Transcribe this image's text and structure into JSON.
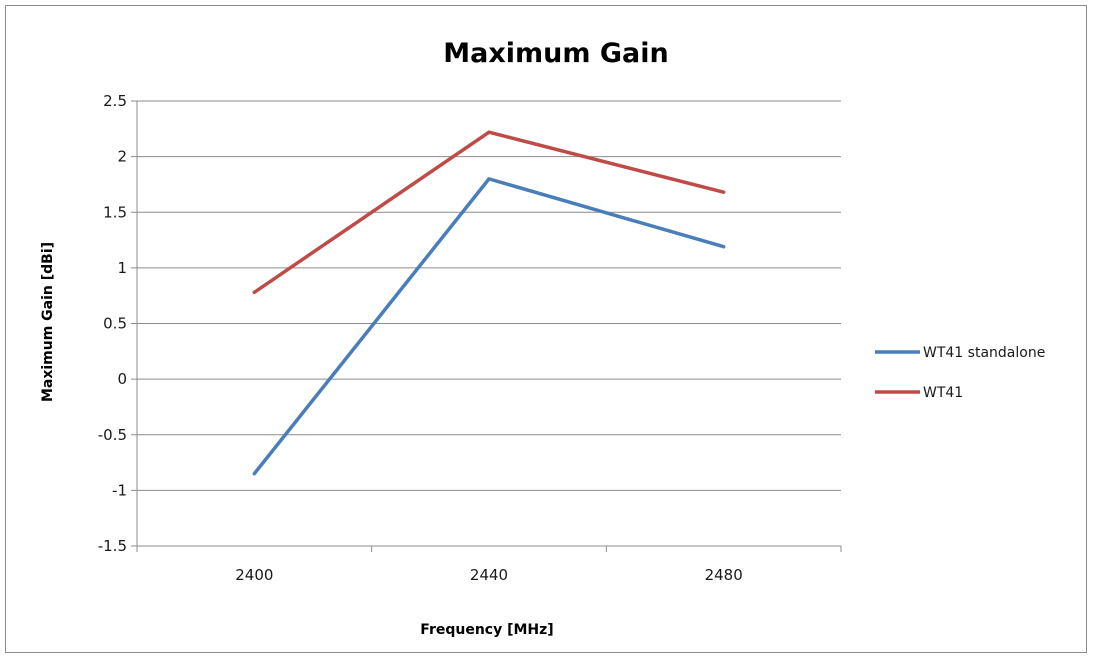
{
  "chart_data": {
    "type": "line",
    "title": "Maximum Gain",
    "xlabel": "Frequency [MHz]",
    "ylabel": "Maximum Gain [dBi]",
    "x": [
      2400,
      2440,
      2480
    ],
    "x_tick_labels": [
      "2400",
      "2440",
      "2480"
    ],
    "xlim": [
      2380,
      2500
    ],
    "ylim": [
      -1.5,
      2.5
    ],
    "y_ticks": [
      2.5,
      2,
      1.5,
      1,
      0.5,
      0,
      -0.5,
      -1,
      -1.5
    ],
    "y_tick_labels": [
      "2.5",
      "2",
      "1.5",
      "1",
      "0.5",
      "0",
      "-0.5",
      "-1",
      "-1.5"
    ],
    "grid": true,
    "legend_position": "right",
    "series": [
      {
        "name": "WT41 standalone",
        "color": "#4a7ebb",
        "values": [
          -0.85,
          1.8,
          1.19
        ]
      },
      {
        "name": "WT41",
        "color": "#be4b48",
        "values": [
          0.78,
          2.22,
          1.68
        ]
      }
    ]
  }
}
